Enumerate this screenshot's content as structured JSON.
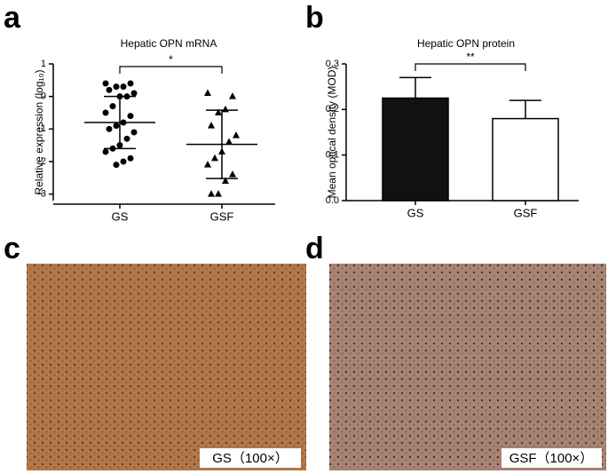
{
  "panels": [
    "a",
    "b",
    "c",
    "d"
  ],
  "chart_data": [
    {
      "type": "dotplot",
      "title": "Hepatic OPN mRNA",
      "ylabel": "Relative expression (log₁₀)",
      "categories": [
        "GS",
        "GSF"
      ],
      "markers": [
        "circle",
        "triangle"
      ],
      "points": [
        [
          0.4,
          0.4,
          0.3,
          0.3,
          0.2,
          0.1,
          0,
          0,
          -0.3,
          -0.5,
          -0.6,
          -0.8,
          -0.9,
          -1.0,
          -1.1,
          -1.3,
          -1.5,
          -1.6,
          -1.7,
          -1.9,
          -2.0,
          -2.1
        ],
        [
          0.1,
          0,
          -0.4,
          -0.5,
          -0.9,
          -1.2,
          -1.4,
          -1.7,
          -1.9,
          -2.1,
          -2.4,
          -2.6,
          -3.0,
          -3.0
        ]
      ],
      "means": [
        -0.8,
        -1.47
      ],
      "sd": [
        0.8,
        1.05
      ],
      "ylim": [
        -3.2,
        1
      ],
      "yticks": [
        -3,
        -2,
        -1,
        0,
        1
      ],
      "significance": "*"
    },
    {
      "type": "bar",
      "title": "Hepatic OPN protein",
      "ylabel": "Mean optical density (MOD)",
      "categories": [
        "GS",
        "GSF"
      ],
      "values": [
        0.225,
        0.18
      ],
      "errors": [
        0.045,
        0.04
      ],
      "colors": [
        "#111111",
        "#ffffff"
      ],
      "ylim": [
        0,
        0.3
      ],
      "yticks": [
        {
          "value": 0,
          "label": "0.0"
        },
        0.1,
        0.2,
        0.3
      ],
      "significance": "**"
    }
  ],
  "images": [
    {
      "caption": "GS（100×）"
    },
    {
      "caption": "GSF（100×）"
    }
  ]
}
